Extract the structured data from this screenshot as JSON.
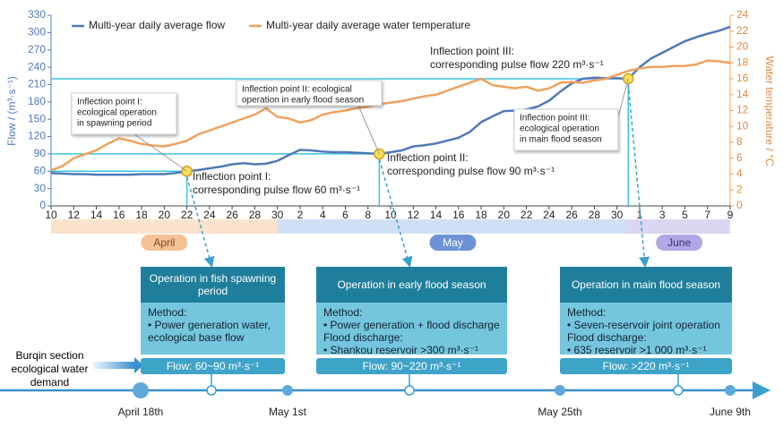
{
  "chart_data": {
    "type": "line",
    "axis_label_y": "Flow / (m³·s⁻¹)",
    "axis_label_y2": "Water temperature / °C",
    "categories": [
      "10",
      null,
      "12",
      null,
      "14",
      null,
      "16",
      null,
      "18",
      null,
      "20",
      null,
      "22",
      null,
      "24",
      null,
      "26",
      null,
      "28",
      null,
      "30",
      null,
      "2",
      null,
      "4",
      null,
      "6",
      null,
      "8",
      null,
      "10",
      null,
      "12",
      null,
      "14",
      null,
      "16",
      null,
      "18",
      null,
      "20",
      null,
      "22",
      null,
      "24",
      null,
      "26",
      null,
      "28",
      null,
      "30",
      null,
      "1",
      null,
      "3",
      null,
      "5",
      null,
      "7",
      null,
      "9"
    ],
    "months": [
      "April",
      "May",
      "June"
    ],
    "series": [
      {
        "name": "Multi-year daily average flow",
        "color": "#4f79b8",
        "values": [
          57,
          56,
          55,
          55,
          54,
          54,
          54,
          54,
          55,
          55,
          55,
          57,
          60,
          62,
          65,
          68,
          72,
          74,
          72,
          73,
          78,
          88,
          97,
          96,
          94,
          93,
          93,
          92,
          91,
          90,
          93,
          96,
          103,
          105,
          108,
          113,
          118,
          128,
          145,
          155,
          164,
          165,
          167,
          172,
          182,
          198,
          212,
          220,
          222,
          221,
          221,
          220,
          240,
          255,
          265,
          275,
          285,
          292,
          298,
          303,
          310
        ]
      },
      {
        "name": "Multi-year daily average water temperature",
        "color": "#f0a15f",
        "axis": "y2",
        "values": [
          4.5,
          5,
          6,
          6.5,
          7,
          7.8,
          8.5,
          8.2,
          7.8,
          7.6,
          7.5,
          7.8,
          8.2,
          9,
          9.5,
          10,
          10.5,
          11,
          11.5,
          12.3,
          11.2,
          11,
          10.5,
          10.8,
          11.5,
          11.8,
          12,
          12.3,
          12.5,
          12.8,
          13,
          13.2,
          13.5,
          13.8,
          14,
          14.5,
          15,
          15.5,
          16,
          15.2,
          15,
          14.8,
          15,
          14.5,
          14.8,
          15.5,
          15.6,
          15.5,
          15.8,
          16,
          16.5,
          17,
          17.3,
          17.5,
          17.5,
          17.6,
          17.6,
          17.8,
          18.3,
          18.2,
          18
        ]
      }
    ],
    "ylim": [
      0,
      330
    ],
    "yticks": [
      0,
      30,
      60,
      90,
      120,
      150,
      180,
      210,
      240,
      270,
      300,
      330
    ],
    "y2lim": [
      0,
      24
    ],
    "y2ticks": [
      0,
      2,
      4,
      6,
      8,
      10,
      12,
      14,
      16,
      18,
      20,
      22,
      24
    ],
    "annotations": [
      {
        "lines": [
          "Inflection point I:",
          "ecological operation",
          "in spawning period"
        ]
      },
      {
        "lines": [
          "Inflection point I:",
          "corresponding pulse flow 60 m³·s⁻¹"
        ]
      },
      {
        "lines": [
          "Inflection point II: ecological",
          "operation in early flood season"
        ]
      },
      {
        "lines": [
          "Inflection point II:",
          "corresponding pulse flow 90 m³·s⁻¹"
        ]
      },
      {
        "lines": [
          "Inflection point III:",
          "ecological operation",
          "in main flood season"
        ]
      },
      {
        "lines": [
          "Inflection point III:",
          "corresponding pulse flow 220 m³·s⁻¹"
        ]
      }
    ]
  },
  "diagram": {
    "stages": [
      {
        "title": "Operation in fish spawning period",
        "body": [
          "Method:",
          "• Power generation water, ecological base flow"
        ],
        "flow": "Flow: 60~90 m³·s⁻¹"
      },
      {
        "title": "Operation in early flood season",
        "body": [
          "Method:",
          "• Power generation + flood discharge",
          "Flood discharge:",
          "• Shankou reservoir >300 m³·s⁻¹"
        ],
        "flow": "Flow: 90~220 m³·s⁻¹"
      },
      {
        "title": "Operation in main flood season",
        "body": [
          "Method:",
          "• Seven-reservoir joint operation",
          "Flood discharge:",
          "• 635 reservoir >1 000 m³·s⁻¹"
        ],
        "flow": "Flow: >220 m³·s⁻¹"
      }
    ],
    "timeline_label": "Burqin section ecological water demand",
    "dates": [
      "April 18th",
      "May 1st",
      "May 25th",
      "June 9th"
    ]
  }
}
